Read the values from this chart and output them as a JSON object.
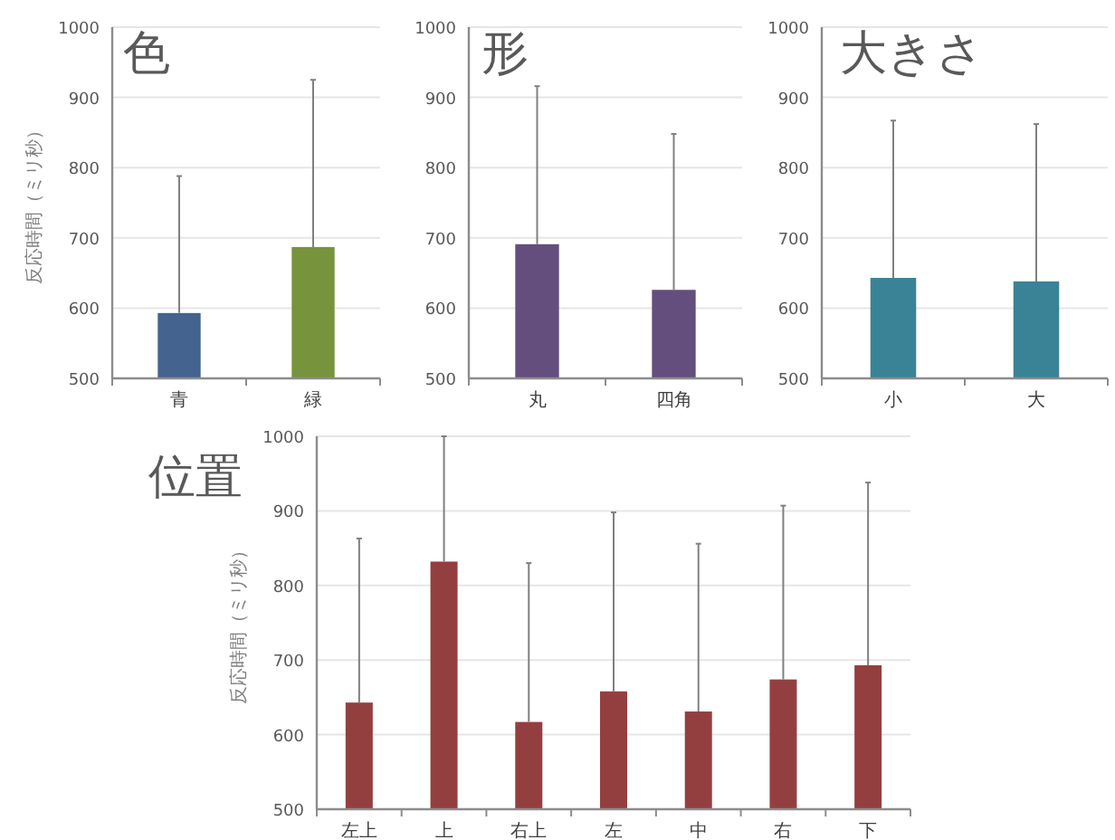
{
  "chart_data": [
    {
      "type": "bar",
      "title": "色",
      "ylabel": "反応時間（ミリ秒）",
      "categories": [
        "青",
        "緑"
      ],
      "values": [
        593,
        687
      ],
      "colors": [
        "#44638f",
        "#77933c"
      ],
      "errors": [
        [
          593,
          788
        ],
        [
          687,
          925
        ]
      ],
      "ylim": [
        500,
        1000
      ],
      "yticks": [
        500,
        600,
        700,
        800,
        900,
        1000
      ],
      "grid": "y"
    },
    {
      "type": "bar",
      "title": "形",
      "categories": [
        "丸",
        "四角"
      ],
      "values": [
        691,
        626
      ],
      "colors": [
        "#634e7e",
        "#634e7e"
      ],
      "errors": [
        [
          691,
          916
        ],
        [
          626,
          848
        ]
      ],
      "ylim": [
        500,
        1000
      ],
      "yticks": [
        500,
        600,
        700,
        800,
        900,
        1000
      ],
      "grid": "y"
    },
    {
      "type": "bar",
      "title": "大きさ",
      "categories": [
        "小",
        "大"
      ],
      "values": [
        643,
        638
      ],
      "colors": [
        "#3a8296",
        "#3a8296"
      ],
      "errors": [
        [
          643,
          867
        ],
        [
          638,
          862
        ]
      ],
      "ylim": [
        500,
        1000
      ],
      "yticks": [
        500,
        600,
        700,
        800,
        900,
        1000
      ],
      "grid": "y"
    },
    {
      "type": "bar",
      "title": "位置",
      "ylabel": "反応時間（ミリ秒）",
      "categories": [
        "左上",
        "上",
        "右上",
        "左",
        "中",
        "右",
        "下"
      ],
      "values": [
        643,
        832,
        617,
        658,
        631,
        674,
        693
      ],
      "colors": [
        "#943f3f",
        "#943f3f",
        "#943f3f",
        "#943f3f",
        "#943f3f",
        "#943f3f",
        "#943f3f"
      ],
      "errors": [
        [
          643,
          863
        ],
        [
          832,
          1000
        ],
        [
          617,
          830
        ],
        [
          658,
          898
        ],
        [
          631,
          856
        ],
        [
          674,
          907
        ],
        [
          693,
          938
        ]
      ],
      "ylim": [
        500,
        1000
      ],
      "yticks": [
        500,
        600,
        700,
        800,
        900,
        1000
      ],
      "grid": "y"
    }
  ]
}
